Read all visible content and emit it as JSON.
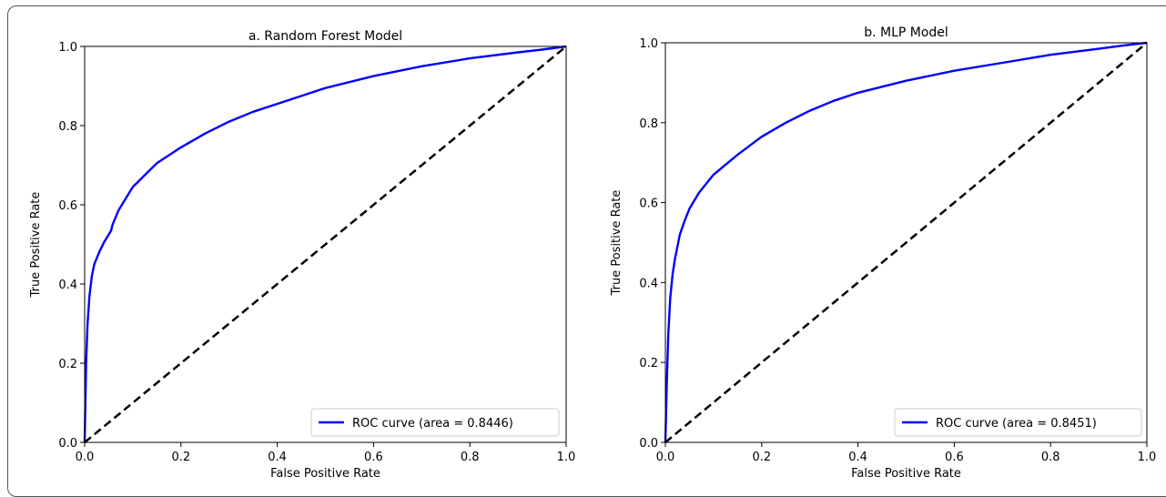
{
  "chart_data": [
    {
      "type": "line",
      "title": "a. Random Forest Model",
      "xlabel": "False Positive Rate",
      "ylabel": "True Positive Rate",
      "xlim": [
        0.0,
        1.0
      ],
      "ylim": [
        0.0,
        1.0
      ],
      "xticks": [
        "0.0",
        "0.2",
        "0.4",
        "0.6",
        "0.8",
        "1.0"
      ],
      "yticks": [
        "0.0",
        "0.2",
        "0.4",
        "0.6",
        "0.8",
        "1.0"
      ],
      "grid": false,
      "legend_position": "lower-right",
      "series": [
        {
          "name": "ROC curve (area = 0.8446)",
          "color": "#0000ff",
          "style": "solid",
          "x": [
            0.0,
            0.003,
            0.006,
            0.01,
            0.015,
            0.02,
            0.03,
            0.04,
            0.05,
            0.055,
            0.058,
            0.07,
            0.1,
            0.15,
            0.2,
            0.25,
            0.3,
            0.35,
            0.4,
            0.45,
            0.5,
            0.6,
            0.7,
            0.8,
            0.9,
            0.95,
            1.0
          ],
          "y": [
            0.0,
            0.2,
            0.3,
            0.37,
            0.42,
            0.45,
            0.48,
            0.505,
            0.525,
            0.535,
            0.55,
            0.585,
            0.645,
            0.705,
            0.745,
            0.78,
            0.81,
            0.835,
            0.855,
            0.875,
            0.895,
            0.925,
            0.95,
            0.97,
            0.985,
            0.992,
            1.0
          ]
        },
        {
          "name": "",
          "color": "#000000",
          "style": "dashed",
          "x": [
            0.0,
            1.0
          ],
          "y": [
            0.0,
            1.0
          ]
        }
      ]
    },
    {
      "type": "line",
      "title": "b. MLP Model",
      "xlabel": "False Positive Rate",
      "ylabel": "True Positive Rate",
      "xlim": [
        0.0,
        1.0
      ],
      "ylim": [
        0.0,
        1.0
      ],
      "xticks": [
        "0.0",
        "0.2",
        "0.4",
        "0.6",
        "0.8",
        "1.0"
      ],
      "yticks": [
        "0.0",
        "0.2",
        "0.4",
        "0.6",
        "0.8",
        "1.0"
      ],
      "grid": false,
      "legend_position": "lower-right",
      "series": [
        {
          "name": "ROC curve (area = 0.8451)",
          "color": "#0000ff",
          "style": "solid",
          "x": [
            0.0,
            0.003,
            0.006,
            0.01,
            0.015,
            0.02,
            0.03,
            0.04,
            0.05,
            0.07,
            0.1,
            0.15,
            0.2,
            0.25,
            0.3,
            0.35,
            0.4,
            0.45,
            0.5,
            0.6,
            0.7,
            0.8,
            0.9,
            0.95,
            1.0
          ],
          "y": [
            0.0,
            0.15,
            0.27,
            0.36,
            0.42,
            0.46,
            0.52,
            0.555,
            0.585,
            0.625,
            0.67,
            0.72,
            0.765,
            0.8,
            0.83,
            0.855,
            0.875,
            0.89,
            0.905,
            0.93,
            0.95,
            0.97,
            0.985,
            0.993,
            1.0
          ]
        },
        {
          "name": "",
          "color": "#000000",
          "style": "dashed",
          "x": [
            0.0,
            1.0
          ],
          "y": [
            0.0,
            1.0
          ]
        }
      ]
    }
  ]
}
